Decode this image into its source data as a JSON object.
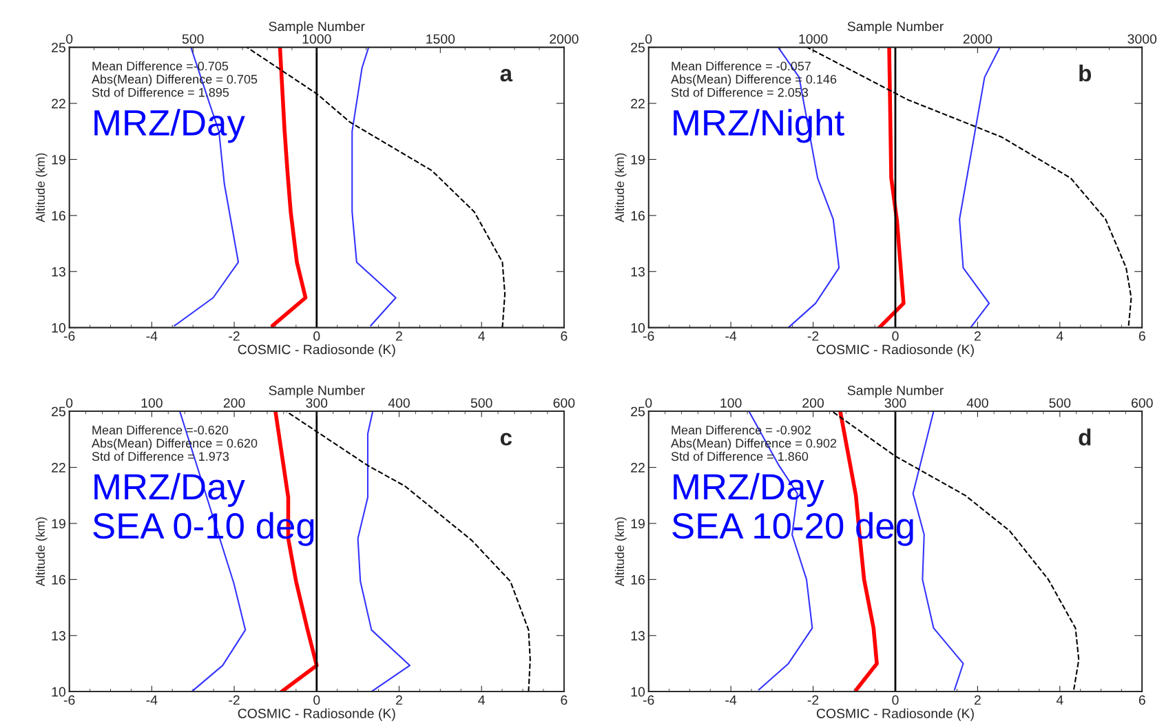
{
  "chart_data": [
    {
      "type": "line",
      "orientation": "horizontal",
      "xlabel": "COSMIC - Radiosonde (K)",
      "ylabel": "Altitude (km)",
      "x2label": "Sample Number",
      "xlim": [
        -6,
        6
      ],
      "xticks": [
        -6,
        -4,
        -2,
        0,
        2,
        4,
        6
      ],
      "ylim": [
        10,
        25
      ],
      "yticks": [
        10,
        13,
        16,
        19,
        22,
        25
      ],
      "x2lim": [
        0,
        2000
      ],
      "x2ticks": [
        0,
        500,
        1000,
        1500,
        2000
      ],
      "ref_lines": [
        {
          "axis": "x",
          "value": 0,
          "color": "#000000"
        }
      ],
      "annotations": [
        "Mean Difference =-0.705",
        "Abs(Mean) Difference = 0.705",
        "Std of Difference = 1.895",
        "a",
        "MRZ/Day"
      ],
      "series": [
        {
          "color": "#3333ff",
          "x": [
            10.1,
            11.6,
            13.5,
            17.7,
            20.5,
            22,
            25
          ],
          "values": [
            -3.45,
            -2.51,
            -1.9,
            -2.24,
            -2.37,
            -2.6,
            -3.05
          ]
        },
        {
          "color": "#3333ff",
          "x": [
            10.1,
            11.6,
            13.5,
            16.2,
            20.5,
            23.9,
            25
          ],
          "values": [
            1.31,
            1.92,
            0.97,
            0.86,
            0.86,
            1.1,
            1.26
          ]
        },
        {
          "color": "#000000",
          "line_style": "dashed",
          "axis": "x2",
          "x": [
            10,
            11.8,
            13.5,
            16.2,
            18.4,
            21,
            22.5,
            25
          ],
          "values": [
            1751,
            1761,
            1751,
            1637,
            1466,
            1134,
            1002,
            718
          ]
        },
        {
          "color": "#ff0000",
          "x": [
            10.1,
            11.6,
            13.5,
            16.2,
            18.4,
            20.6,
            25
          ],
          "values": [
            -1.07,
            -0.27,
            -0.48,
            -0.63,
            -0.71,
            -0.78,
            -0.89
          ]
        }
      ]
    },
    {
      "type": "line",
      "orientation": "horizontal",
      "xlabel": "COSMIC - Radiosonde (K)",
      "ylabel": "Altitude (km)",
      "x2label": "Sample Number",
      "xlim": [
        -6,
        6
      ],
      "xticks": [
        -6,
        -4,
        -2,
        0,
        2,
        4,
        6
      ],
      "ylim": [
        10,
        25
      ],
      "yticks": [
        10,
        13,
        16,
        19,
        22,
        25
      ],
      "x2lim": [
        0,
        3000
      ],
      "x2ticks": [
        0,
        1000,
        2000,
        3000
      ],
      "ref_lines": [
        {
          "axis": "x",
          "value": 0,
          "color": "#000000"
        }
      ],
      "annotations": [
        "Mean Difference = -0.057",
        "Abs(Mean) Difference = 0.146",
        "Std of Difference = 2.053",
        "b",
        "MRZ/Night"
      ],
      "series": [
        {
          "color": "#3333ff",
          "x": [
            10,
            11.3,
            13.2,
            15.8,
            18,
            23.4,
            25
          ],
          "values": [
            -2.6,
            -1.94,
            -1.37,
            -1.51,
            -1.89,
            -2.34,
            -2.85
          ]
        },
        {
          "color": "#3333ff",
          "x": [
            10,
            11.3,
            13.2,
            15.8,
            23.4,
            25
          ],
          "values": [
            1.83,
            2.28,
            1.65,
            1.56,
            2.17,
            2.54
          ]
        },
        {
          "color": "#000000",
          "line_style": "dashed",
          "axis": "x2",
          "x": [
            10.1,
            11.6,
            13.2,
            15.8,
            18,
            20.2,
            22.2,
            25
          ],
          "values": [
            2918,
            2934,
            2903,
            2778,
            2566,
            2146,
            1574,
            965
          ]
        },
        {
          "color": "#ff0000",
          "x": [
            10,
            11.3,
            15.7,
            18,
            25
          ],
          "values": [
            -0.39,
            0.2,
            0.04,
            -0.1,
            -0.15
          ]
        }
      ]
    },
    {
      "type": "line",
      "orientation": "horizontal",
      "xlabel": "COSMIC - Radiosonde (K)",
      "ylabel": "Altitude (km)",
      "x2label": "Sample Number",
      "xlim": [
        -6,
        6
      ],
      "xticks": [
        -6,
        -4,
        -2,
        0,
        2,
        4,
        6
      ],
      "ylim": [
        10,
        25
      ],
      "yticks": [
        10,
        13,
        16,
        19,
        22,
        25
      ],
      "x2lim": [
        0,
        600
      ],
      "x2ticks": [
        0,
        100,
        200,
        300,
        400,
        500,
        600
      ],
      "ref_lines": [
        {
          "axis": "x",
          "value": 0,
          "color": "#000000"
        }
      ],
      "annotations": [
        "Mean Difference =-0.620",
        "Abs(Mean) Difference = 0.620",
        "Std of Difference = 1.973",
        "c",
        "MRZ/Day\nSEA 0-10 deg"
      ],
      "series": [
        {
          "color": "#3333ff",
          "x": [
            10,
            11.4,
            13.3,
            15.8,
            25
          ],
          "values": [
            -3.03,
            -2.28,
            -1.73,
            -2.01,
            -3.32
          ]
        },
        {
          "color": "#3333ff",
          "x": [
            10,
            11.4,
            13.3,
            15.9,
            18.2,
            20.4,
            23.8,
            25
          ],
          "values": [
            1.33,
            2.26,
            1.33,
            1.06,
            1.0,
            1.24,
            1.24,
            1.36
          ]
        },
        {
          "color": "#000000",
          "line_style": "dashed",
          "axis": "x2",
          "x": [
            10,
            11.7,
            13.3,
            15.9,
            18.1,
            21,
            22.1,
            25
          ],
          "values": [
            557,
            559,
            557,
            535,
            488,
            407,
            362,
            263
          ]
        },
        {
          "color": "#ff0000",
          "x": [
            10,
            11.4,
            13.3,
            15.9,
            18.2,
            20.4,
            25
          ],
          "values": [
            -0.85,
            0,
            -0.22,
            -0.5,
            -0.69,
            -0.69,
            -1.0
          ]
        }
      ]
    },
    {
      "type": "line",
      "orientation": "horizontal",
      "xlabel": "COSMIC - Radiosonde (K)",
      "ylabel": "Altitude (km)",
      "x2label": "Sample Number",
      "xlim": [
        -6,
        6
      ],
      "xticks": [
        -6,
        -4,
        -2,
        0,
        2,
        4,
        6
      ],
      "ylim": [
        10,
        25
      ],
      "yticks": [
        10,
        13,
        16,
        19,
        22,
        25
      ],
      "x2lim": [
        0,
        600
      ],
      "x2ticks": [
        0,
        100,
        200,
        300,
        400,
        500,
        600
      ],
      "ref_lines": [
        {
          "axis": "x",
          "value": 0,
          "color": "#000000"
        }
      ],
      "annotations": [
        "Mean Difference = -0.902",
        "Abs(Mean) Difference = 0.902",
        "Std of Difference = 1.860",
        "d",
        "MRZ/Day\nSEA 10-20 deg"
      ],
      "series": [
        {
          "color": "#3333ff",
          "x": [
            10.1,
            11.5,
            13.4,
            16,
            18.4,
            20.6,
            22.1,
            25
          ],
          "values": [
            -3.32,
            -2.6,
            -2.02,
            -2.16,
            -2.51,
            -2.38,
            -2.83,
            -3.56
          ]
        },
        {
          "color": "#3333ff",
          "x": [
            10.1,
            11.5,
            13.4,
            16,
            18.4,
            20.6,
            25
          ],
          "values": [
            1.44,
            1.65,
            0.93,
            0.66,
            0.7,
            0.43,
            0.93
          ]
        },
        {
          "color": "#000000",
          "line_style": "dashed",
          "axis": "x2",
          "x": [
            10.1,
            11.7,
            13.4,
            16,
            18.6,
            20.5,
            22.6,
            25
          ],
          "values": [
            517,
            523,
            519,
            486,
            439,
            385,
            300,
            223
          ]
        },
        {
          "color": "#ff0000",
          "x": [
            10.1,
            11.5,
            13.4,
            16,
            18.4,
            20.5,
            25
          ],
          "values": [
            -0.95,
            -0.45,
            -0.53,
            -0.76,
            -0.87,
            -0.96,
            -1.34
          ]
        }
      ]
    }
  ]
}
